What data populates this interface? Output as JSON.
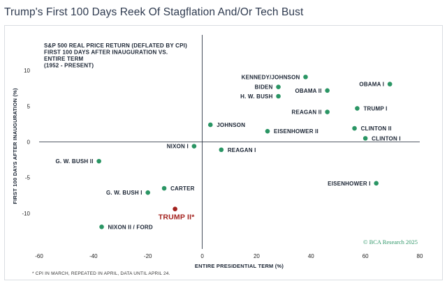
{
  "title": "Trump's First 100 Days Reek Of Stagflation And/Or Tech Bust",
  "footnote": "* CPI IN MARCH, REPEATED IN APRIL, DATA UNTIL APRIL 24.",
  "credit": "© BCA Research 2025",
  "colors": {
    "point": "#2a9564",
    "highlight": "#a3211d",
    "text": "#1a2433",
    "credit": "#2f9668"
  },
  "chart_data": {
    "type": "scatter",
    "title": "S&P 500 REAL PRICE RETURN (DEFLATED BY CPI) FIRST 100 DAYS AFTER INAUGURATION VS. ENTIRE TERM (1952 - PRESENT)",
    "note_lines": [
      "S&P 500 REAL PRICE RETURN (DEFLATED BY CPI)",
      "FIRST 100 DAYS AFTER INAUGURATION  VS.",
      "ENTIRE TERM",
      "(1952 - PRESENT)"
    ],
    "xlabel": "ENTIRE PRESIDENTIAL TERM (%)",
    "ylabel": "FIRST 100 DAYS AFTER INAUGURATION (%)",
    "xlim": [
      -60,
      80
    ],
    "ylim": [
      -15,
      15
    ],
    "xticks": [
      "-60",
      "-40",
      "-20",
      "0",
      "20",
      "40",
      "60",
      "80"
    ],
    "yticks": [
      "10",
      "5",
      "0",
      "-5",
      "-10"
    ],
    "grid": false,
    "points": [
      {
        "label": "KENNEDY/JOHNSON",
        "x": 38,
        "y": 9.1,
        "label_pos": "left"
      },
      {
        "label": "OBAMA I",
        "x": 69,
        "y": 8.1,
        "label_pos": "left"
      },
      {
        "label": "BIDEN",
        "x": 28,
        "y": 7.7,
        "label_pos": "left"
      },
      {
        "label": "OBAMA II",
        "x": 46,
        "y": 7.2,
        "label_pos": "left"
      },
      {
        "label": "H. W. BUSH",
        "x": 28,
        "y": 6.4,
        "label_pos": "left"
      },
      {
        "label": "TRUMP I",
        "x": 57,
        "y": 4.7,
        "label_pos": "right"
      },
      {
        "label": "REAGAN II",
        "x": 46,
        "y": 4.2,
        "label_pos": "left"
      },
      {
        "label": "JOHNSON",
        "x": 3,
        "y": 2.4,
        "label_pos": "right"
      },
      {
        "label": "CLINTON II",
        "x": 56,
        "y": 1.9,
        "label_pos": "right"
      },
      {
        "label": "EISENHOWER II",
        "x": 24,
        "y": 1.5,
        "label_pos": "right"
      },
      {
        "label": "CLINTON I",
        "x": 60,
        "y": 0.5,
        "label_pos": "right"
      },
      {
        "label": "NIXON I",
        "x": -3,
        "y": -0.6,
        "label_pos": "left"
      },
      {
        "label": "REAGAN I",
        "x": 7,
        "y": -1.1,
        "label_pos": "right"
      },
      {
        "label": "G. W. BUSH II",
        "x": -38,
        "y": -2.7,
        "label_pos": "left"
      },
      {
        "label": "EISENHOWER I",
        "x": 64,
        "y": -5.8,
        "label_pos": "left"
      },
      {
        "label": "CARTER",
        "x": -14,
        "y": -6.5,
        "label_pos": "right"
      },
      {
        "label": "G. W. BUSH I",
        "x": -20,
        "y": -7.1,
        "label_pos": "left"
      },
      {
        "label": "TRUMP II*",
        "x": -10,
        "y": -9.4,
        "label_pos": "below",
        "highlight": true
      },
      {
        "label": "NIXON II / FORD",
        "x": -37,
        "y": -11.9,
        "label_pos": "right"
      }
    ]
  }
}
